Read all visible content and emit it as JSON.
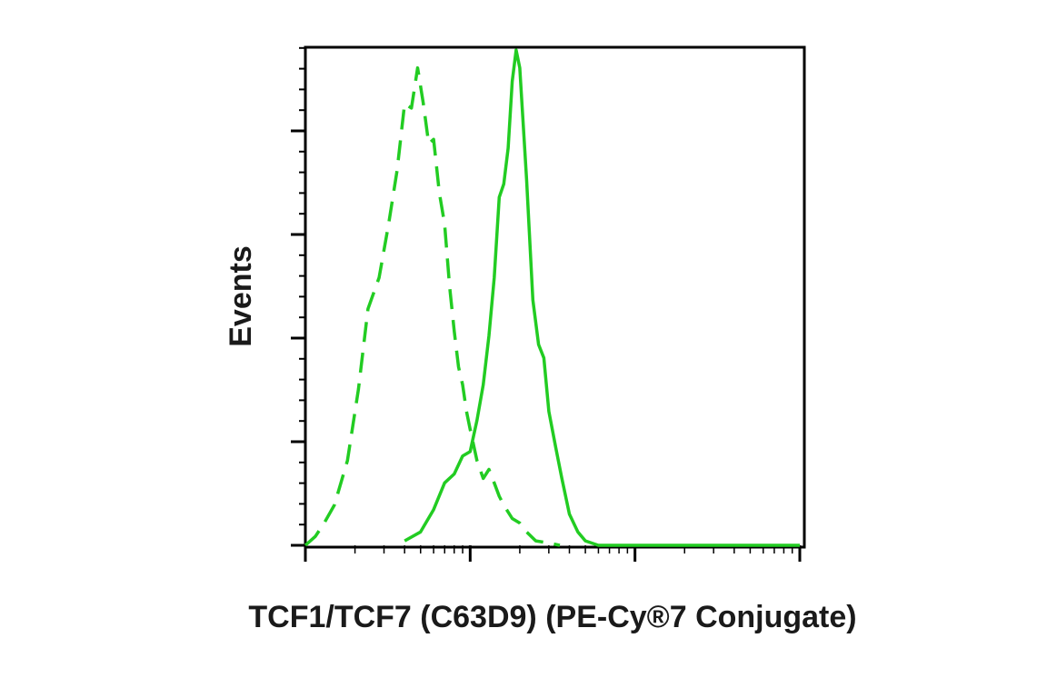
{
  "chart_data": {
    "type": "line",
    "title": "",
    "xlabel": "TCF1/TCF7 (C63D9) (PE-Cy®7 Conjugate)",
    "ylabel": "Events",
    "x_scale": "log",
    "xlim": [
      1,
      1000
    ],
    "ylim": [
      0,
      1.1
    ],
    "grid": false,
    "legend": "none",
    "colors": {
      "series": "#22cc22",
      "axis": "#000000"
    },
    "series": [
      {
        "style": "dashed",
        "x": [
          1,
          1.15,
          1.3,
          1.5,
          1.8,
          2.1,
          2.4,
          2.8,
          3.2,
          3.6,
          4.0,
          4.4,
          4.8,
          5.2,
          5.6,
          6.0,
          6.5,
          7.0,
          7.5,
          8.0,
          8.5,
          9.0,
          9.5,
          10,
          11,
          12,
          13,
          14,
          15,
          16,
          18,
          20,
          22,
          25,
          30,
          35
        ],
        "y": [
          0.0,
          0.02,
          0.05,
          0.09,
          0.19,
          0.35,
          0.53,
          0.6,
          0.72,
          0.84,
          0.99,
          0.98,
          1.07,
          0.99,
          0.9,
          0.91,
          0.79,
          0.72,
          0.58,
          0.48,
          0.4,
          0.36,
          0.3,
          0.26,
          0.19,
          0.15,
          0.17,
          0.14,
          0.11,
          0.09,
          0.06,
          0.05,
          0.03,
          0.01,
          0.005,
          0.0
        ]
      },
      {
        "style": "solid",
        "x": [
          4.0,
          5.0,
          6.0,
          7.0,
          8.0,
          9.0,
          10,
          11,
          12,
          13,
          14,
          15,
          16,
          17,
          18,
          19,
          20,
          22,
          24,
          26,
          28,
          30,
          33,
          36,
          40,
          45,
          50,
          60,
          70,
          100,
          200,
          1000
        ],
        "y": [
          0.01,
          0.03,
          0.08,
          0.14,
          0.16,
          0.2,
          0.21,
          0.28,
          0.36,
          0.47,
          0.6,
          0.78,
          0.81,
          0.89,
          1.04,
          1.11,
          1.07,
          0.82,
          0.55,
          0.45,
          0.42,
          0.3,
          0.22,
          0.15,
          0.07,
          0.03,
          0.01,
          0.0,
          0.0,
          0.0,
          0.0,
          0.0
        ]
      }
    ]
  }
}
